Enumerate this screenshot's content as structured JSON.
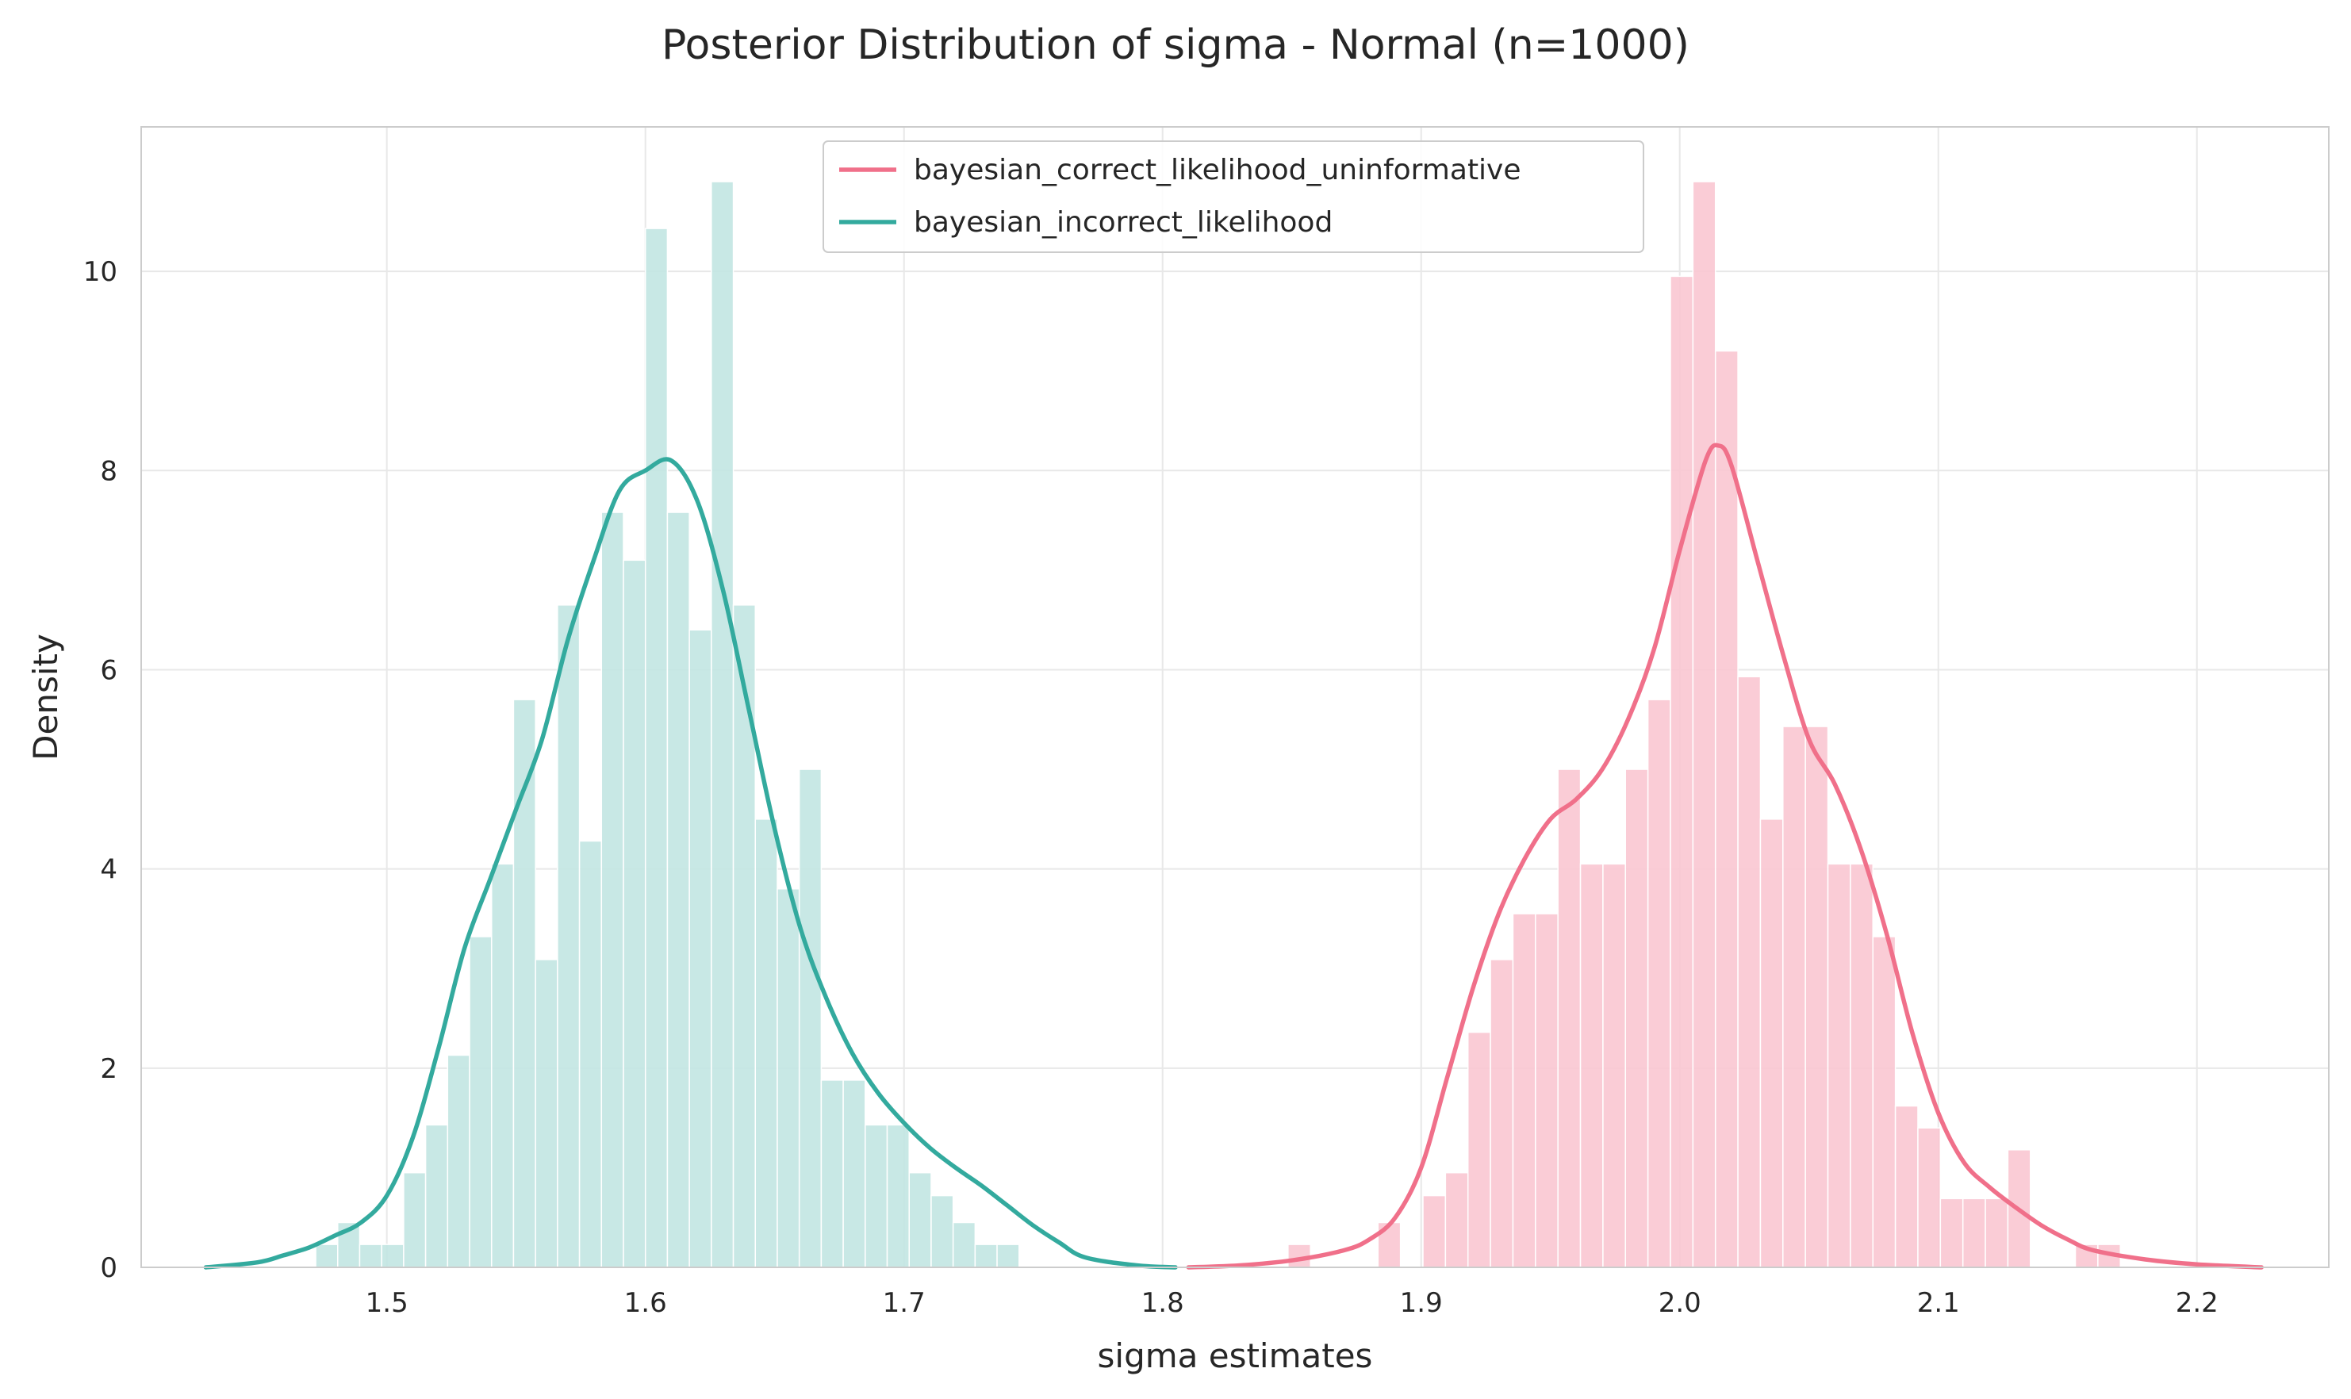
{
  "chart_data": {
    "type": "histogram",
    "title": "Posterior Distribution of sigma - Normal (n=1000)",
    "xlabel": "sigma estimates",
    "ylabel": "Density",
    "xlim": [
      1.405,
      2.251
    ],
    "ylim": [
      0,
      11.45
    ],
    "xticks": [
      1.5,
      1.6,
      1.7,
      1.8,
      1.9,
      2.0,
      2.1,
      2.2
    ],
    "xtick_labels": [
      "1.5",
      "1.6",
      "1.7",
      "1.8",
      "1.9",
      "2.0",
      "2.1",
      "2.2"
    ],
    "yticks": [
      0,
      2,
      4,
      6,
      8,
      10
    ],
    "ytick_labels": [
      "0",
      "2",
      "4",
      "6",
      "8",
      "10"
    ],
    "grid": true,
    "legend_position": "top-center",
    "series": [
      {
        "name": "bayesian_correct_likelihood_uninformative",
        "color": "#f0708a",
        "bar_color": "#f9c6d1",
        "hist_start": 1.8485,
        "bin_width": 0.0087,
        "densities": [
          0.23,
          0.0,
          0.0,
          0.0,
          0.45,
          0.0,
          0.72,
          0.95,
          2.36,
          3.09,
          3.55,
          3.55,
          5.0,
          4.05,
          4.05,
          5.0,
          5.7,
          9.95,
          10.9,
          9.2,
          5.93,
          4.5,
          5.43,
          5.43,
          4.05,
          4.05,
          3.32,
          1.62,
          1.4,
          0.69,
          0.69,
          0.69,
          1.18,
          0.0,
          0.0,
          0.23,
          0.23
        ],
        "kde": {
          "x": [
            1.81,
            1.83,
            1.85,
            1.87,
            1.88,
            1.89,
            1.9,
            1.91,
            1.92,
            1.93,
            1.94,
            1.95,
            1.96,
            1.97,
            1.98,
            1.99,
            2.0,
            2.01,
            2.015,
            2.02,
            2.03,
            2.04,
            2.05,
            2.06,
            2.07,
            2.08,
            2.09,
            2.1,
            2.11,
            2.12,
            2.13,
            2.14,
            2.15,
            2.16,
            2.18,
            2.2,
            2.225
          ],
          "y": [
            0.0,
            0.02,
            0.07,
            0.17,
            0.28,
            0.5,
            1.0,
            1.9,
            2.8,
            3.55,
            4.1,
            4.5,
            4.7,
            5.0,
            5.5,
            6.2,
            7.2,
            8.1,
            8.25,
            8.05,
            7.1,
            6.15,
            5.3,
            4.85,
            4.2,
            3.35,
            2.35,
            1.55,
            1.05,
            0.8,
            0.6,
            0.42,
            0.28,
            0.17,
            0.08,
            0.03,
            0.0
          ]
        }
      },
      {
        "name": "bayesian_incorrect_likelihood",
        "color": "#33aa9e",
        "bar_color": "#c2e6e2",
        "hist_start": 1.4725,
        "bin_width": 0.0085,
        "densities": [
          0.23,
          0.45,
          0.23,
          0.23,
          0.95,
          1.43,
          2.13,
          3.32,
          4.05,
          5.7,
          3.09,
          6.65,
          4.28,
          7.58,
          7.1,
          10.43,
          7.58,
          6.4,
          10.9,
          6.65,
          4.5,
          3.8,
          5.0,
          1.88,
          1.88,
          1.43,
          1.43,
          0.95,
          0.72,
          0.45,
          0.23,
          0.23
        ],
        "kde": {
          "x": [
            1.43,
            1.45,
            1.46,
            1.47,
            1.48,
            1.49,
            1.5,
            1.51,
            1.52,
            1.53,
            1.54,
            1.55,
            1.56,
            1.57,
            1.58,
            1.59,
            1.6,
            1.61,
            1.62,
            1.63,
            1.64,
            1.65,
            1.66,
            1.67,
            1.68,
            1.69,
            1.7,
            1.71,
            1.72,
            1.73,
            1.74,
            1.75,
            1.76,
            1.77,
            1.79,
            1.805
          ],
          "y": [
            0.0,
            0.05,
            0.12,
            0.2,
            0.32,
            0.45,
            0.72,
            1.3,
            2.2,
            3.2,
            3.9,
            4.6,
            5.3,
            6.3,
            7.1,
            7.8,
            8.0,
            8.1,
            7.7,
            6.8,
            5.6,
            4.4,
            3.4,
            2.7,
            2.15,
            1.75,
            1.45,
            1.2,
            1.0,
            0.82,
            0.62,
            0.42,
            0.25,
            0.1,
            0.02,
            0.0
          ]
        }
      }
    ]
  }
}
